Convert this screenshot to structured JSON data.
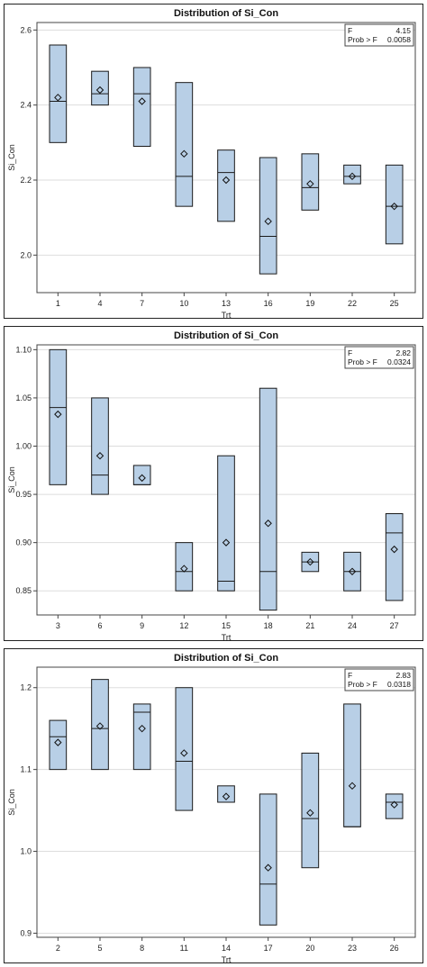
{
  "chart_data": [
    {
      "type": "box",
      "title": "Distribution of Si_Con",
      "xlabel": "Trt",
      "ylabel": "Si_Con",
      "ylim": [
        1.9,
        2.62
      ],
      "yticks": [
        "2.0",
        "2.2",
        "2.4",
        "2.6"
      ],
      "ytick_values": [
        2.0,
        2.2,
        2.4,
        2.6
      ],
      "stats": {
        "f_label": "F",
        "f_value": "4.15",
        "p_label": "Prob > F",
        "p_value": "0.0058"
      },
      "categories": [
        "1",
        "4",
        "7",
        "10",
        "13",
        "16",
        "19",
        "22",
        "25"
      ],
      "boxes": [
        {
          "min": 2.3,
          "max": 2.56,
          "median": 2.41,
          "mean": 2.42
        },
        {
          "min": 2.4,
          "max": 2.49,
          "median": 2.43,
          "mean": 2.44
        },
        {
          "min": 2.29,
          "max": 2.5,
          "median": 2.43,
          "mean": 2.41
        },
        {
          "min": 2.13,
          "max": 2.46,
          "median": 2.21,
          "mean": 2.27
        },
        {
          "min": 2.09,
          "max": 2.28,
          "median": 2.22,
          "mean": 2.2
        },
        {
          "min": 1.95,
          "max": 2.26,
          "median": 2.05,
          "mean": 2.09
        },
        {
          "min": 2.12,
          "max": 2.27,
          "median": 2.18,
          "mean": 2.19
        },
        {
          "min": 2.19,
          "max": 2.24,
          "median": 2.21,
          "mean": 2.21
        },
        {
          "min": 2.03,
          "max": 2.24,
          "median": 2.13,
          "mean": 2.13
        }
      ]
    },
    {
      "type": "box",
      "title": "Distribution of Si_Con",
      "xlabel": "Trt",
      "ylabel": "Si_Con",
      "ylim": [
        0.825,
        1.105
      ],
      "yticks": [
        "0.85",
        "0.90",
        "0.95",
        "1.00",
        "1.05",
        "1.10"
      ],
      "ytick_values": [
        0.85,
        0.9,
        0.95,
        1.0,
        1.05,
        1.1
      ],
      "stats": {
        "f_label": "F",
        "f_value": "2.82",
        "p_label": "Prob > F",
        "p_value": "0.0324"
      },
      "categories": [
        "3",
        "6",
        "9",
        "12",
        "15",
        "18",
        "21",
        "24",
        "27"
      ],
      "boxes": [
        {
          "min": 0.96,
          "max": 1.1,
          "median": 1.04,
          "mean": 1.033
        },
        {
          "min": 0.95,
          "max": 1.05,
          "median": 0.97,
          "mean": 0.99
        },
        {
          "min": 0.96,
          "max": 0.98,
          "median": 0.96,
          "mean": 0.967
        },
        {
          "min": 0.85,
          "max": 0.9,
          "median": 0.87,
          "mean": 0.873
        },
        {
          "min": 0.85,
          "max": 0.99,
          "median": 0.86,
          "mean": 0.9
        },
        {
          "min": 0.83,
          "max": 1.06,
          "median": 0.87,
          "mean": 0.92
        },
        {
          "min": 0.87,
          "max": 0.89,
          "median": 0.88,
          "mean": 0.88
        },
        {
          "min": 0.85,
          "max": 0.89,
          "median": 0.87,
          "mean": 0.87
        },
        {
          "min": 0.84,
          "max": 0.93,
          "median": 0.91,
          "mean": 0.893
        }
      ]
    },
    {
      "type": "box",
      "title": "Distribution of Si_Con",
      "xlabel": "Trt",
      "ylabel": "Si_Con",
      "ylim": [
        0.895,
        1.225
      ],
      "yticks": [
        "0.9",
        "1.0",
        "1.1",
        "1.2"
      ],
      "ytick_values": [
        0.9,
        1.0,
        1.1,
        1.2
      ],
      "stats": {
        "f_label": "F",
        "f_value": "2.83",
        "p_label": "Prob > F",
        "p_value": "0.0318"
      },
      "categories": [
        "2",
        "5",
        "8",
        "11",
        "14",
        "17",
        "20",
        "23",
        "26"
      ],
      "boxes": [
        {
          "min": 1.1,
          "max": 1.16,
          "median": 1.14,
          "mean": 1.133
        },
        {
          "min": 1.1,
          "max": 1.21,
          "median": 1.15,
          "mean": 1.153
        },
        {
          "min": 1.1,
          "max": 1.18,
          "median": 1.17,
          "mean": 1.15
        },
        {
          "min": 1.05,
          "max": 1.2,
          "median": 1.11,
          "mean": 1.12
        },
        {
          "min": 1.06,
          "max": 1.08,
          "median": 1.06,
          "mean": 1.067
        },
        {
          "min": 0.91,
          "max": 1.07,
          "median": 0.96,
          "mean": 0.98
        },
        {
          "min": 0.98,
          "max": 1.12,
          "median": 1.04,
          "mean": 1.047
        },
        {
          "min": 1.03,
          "max": 1.18,
          "median": 1.03,
          "mean": 1.08
        },
        {
          "min": 1.04,
          "max": 1.07,
          "median": 1.06,
          "mean": 1.057
        }
      ]
    }
  ],
  "colors": {
    "box_fill": "#b8cfe6",
    "box_stroke": "#1a1a1a",
    "grid": "#dddddd"
  }
}
